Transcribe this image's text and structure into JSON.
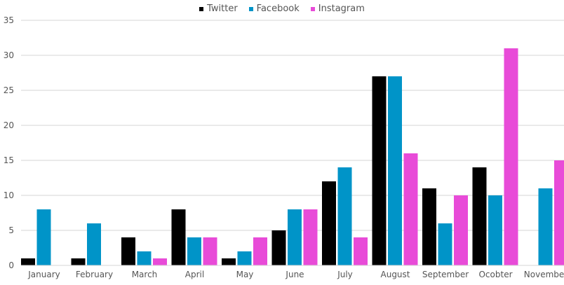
{
  "chart_data": {
    "type": "bar",
    "categories": [
      "January",
      "February",
      "March",
      "April",
      "May",
      "June",
      "July",
      "August",
      "September",
      "Ocobter",
      "November"
    ],
    "series": [
      {
        "name": "Twitter",
        "color": "#000000",
        "values": [
          1,
          1,
          4,
          8,
          1,
          5,
          12,
          27,
          11,
          14,
          0
        ]
      },
      {
        "name": "Facebook",
        "color": "#0094c8",
        "values": [
          8,
          6,
          2,
          4,
          2,
          8,
          14,
          27,
          6,
          10,
          11
        ]
      },
      {
        "name": "Instagram",
        "color": "#e84bd8",
        "values": [
          0,
          0,
          1,
          4,
          4,
          8,
          4,
          16,
          10,
          31,
          15
        ]
      }
    ],
    "ylim": [
      0,
      35
    ],
    "yticks": [
      0,
      5,
      10,
      15,
      20,
      25,
      30,
      35
    ],
    "grid": true,
    "legend": "top-center"
  }
}
